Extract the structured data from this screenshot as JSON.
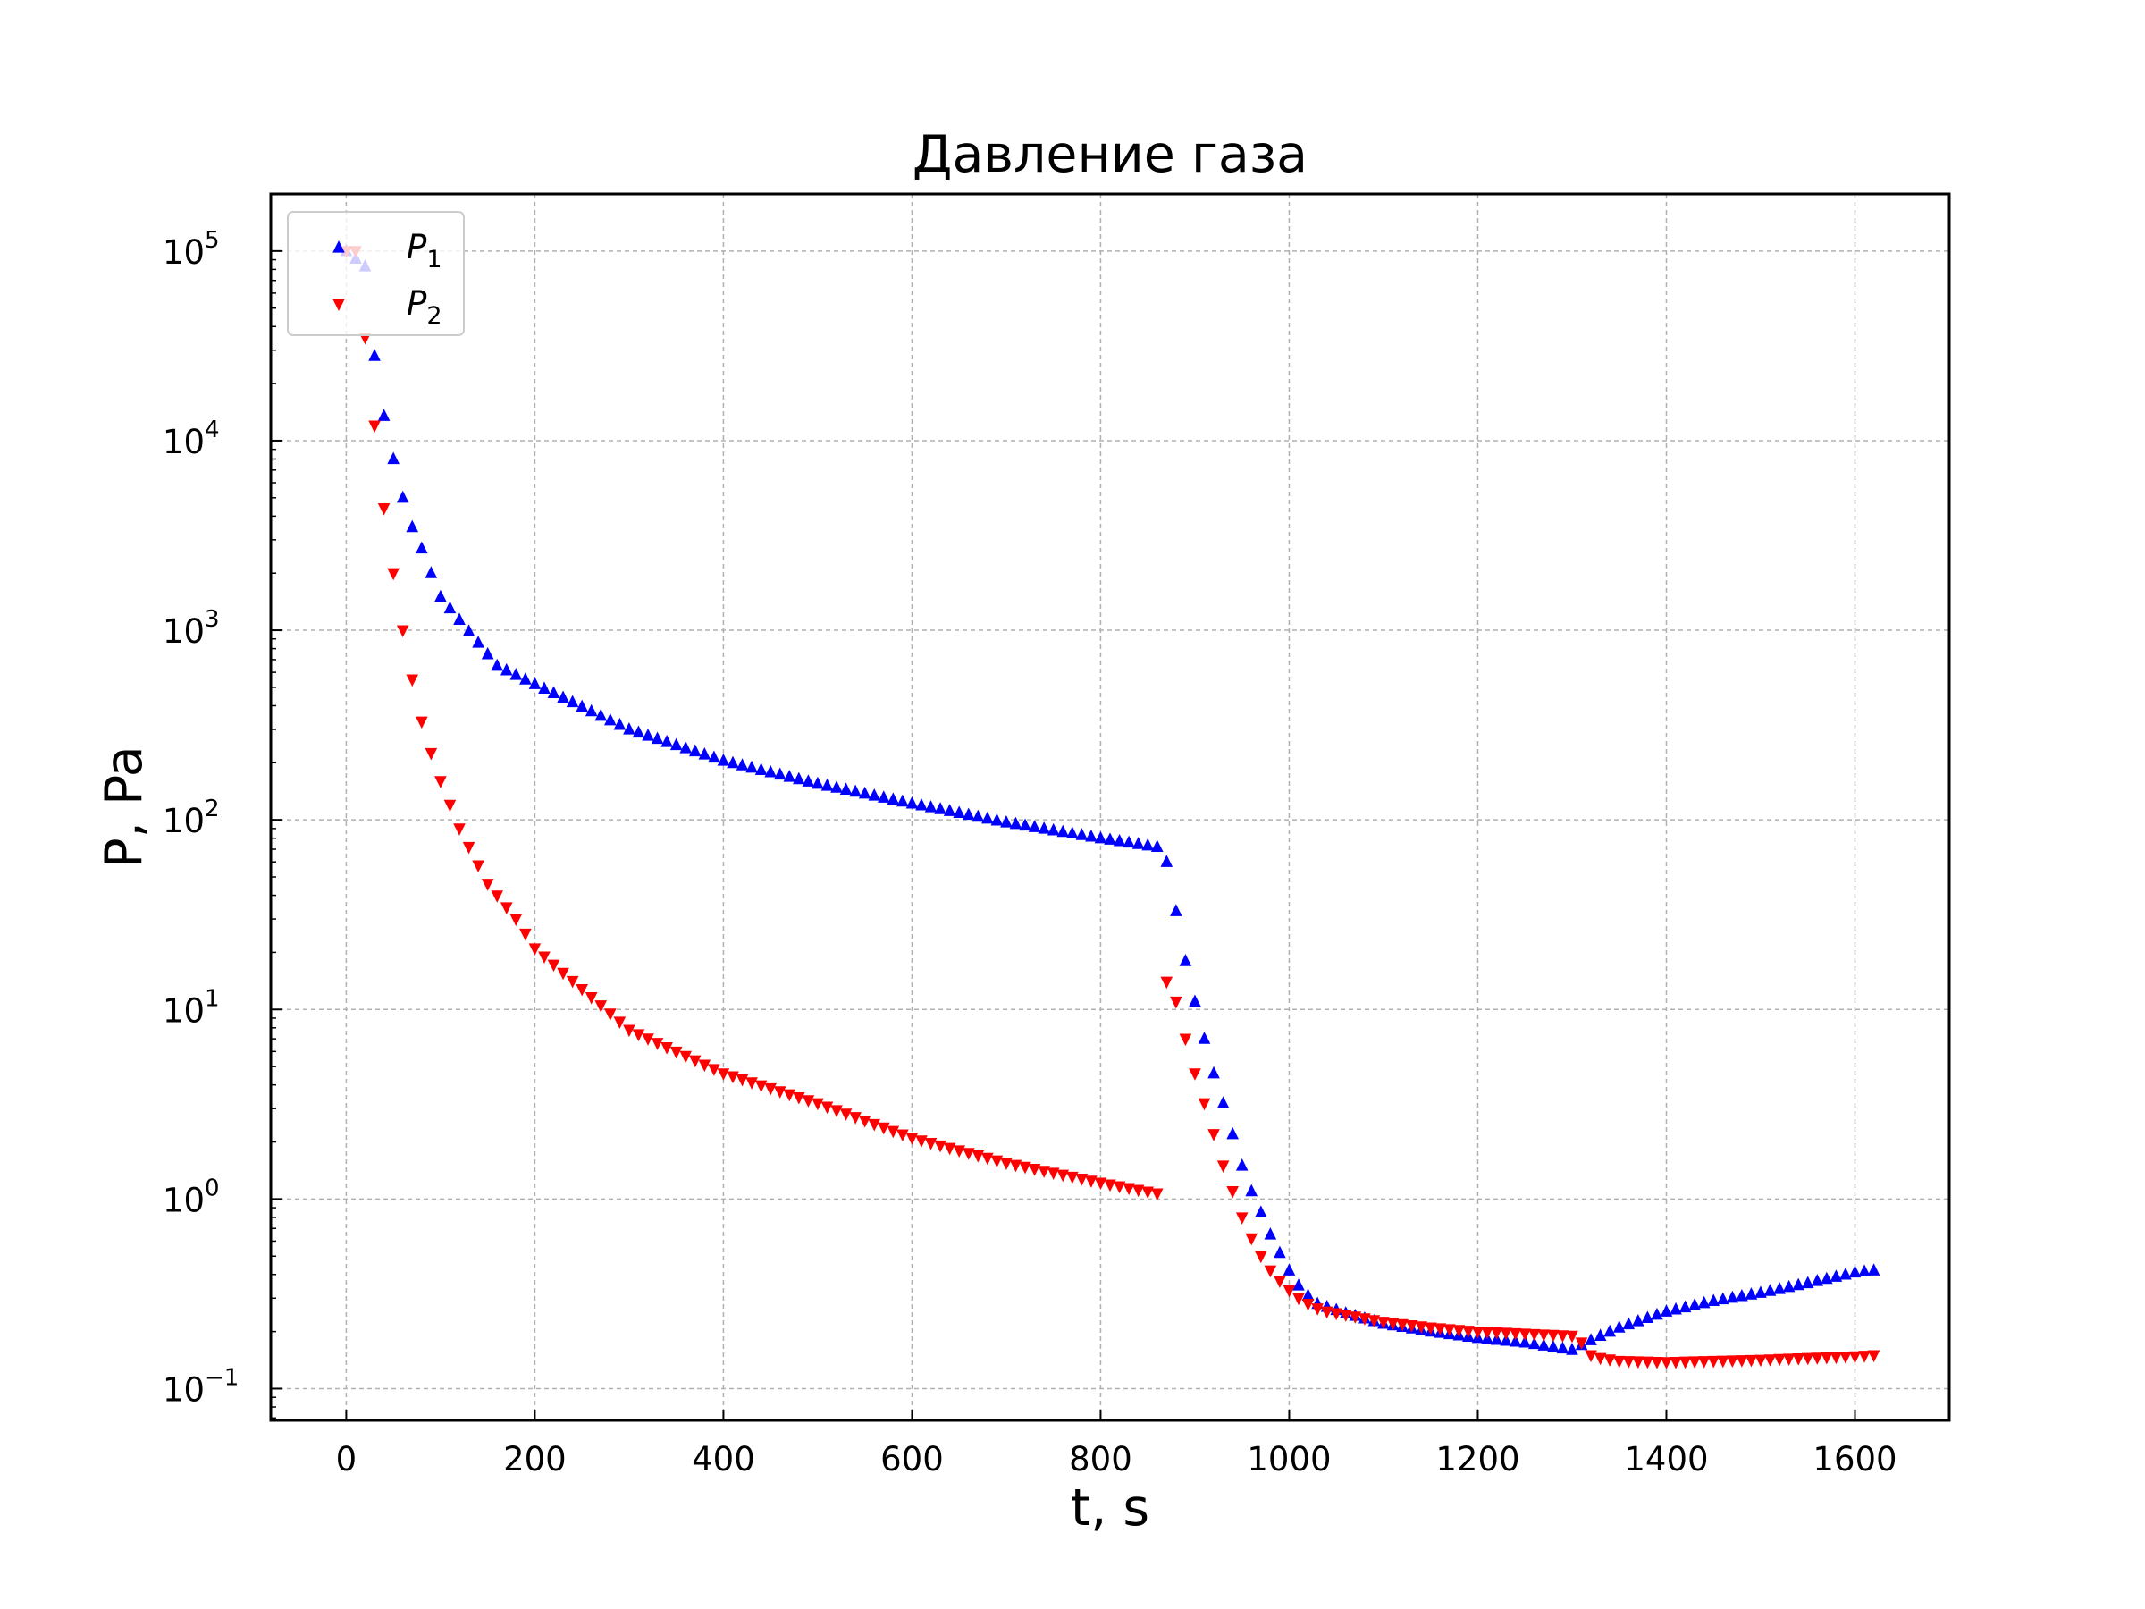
{
  "chart_data": {
    "type": "scatter",
    "title": "Давление газа",
    "xlabel": "t, s",
    "ylabel": "P, Pa",
    "xlim": [
      -80,
      1700
    ],
    "ylim": [
      0.068,
      200000
    ],
    "y_scale": "log",
    "grid": true,
    "legend_placement": "top-left",
    "x_ticks": [
      0,
      200,
      400,
      600,
      800,
      1000,
      1200,
      1400,
      1600
    ],
    "y_ticks": [
      {
        "value": 0.1,
        "base": "10",
        "exp": "−1"
      },
      {
        "value": 1,
        "base": "10",
        "exp": "0"
      },
      {
        "value": 10,
        "base": "10",
        "exp": "1"
      },
      {
        "value": 100,
        "base": "10",
        "exp": "2"
      },
      {
        "value": 1000,
        "base": "10",
        "exp": "3"
      },
      {
        "value": 10000,
        "base": "10",
        "exp": "4"
      },
      {
        "value": 100000,
        "base": "10",
        "exp": "5"
      }
    ],
    "series": [
      {
        "name": "P₁",
        "legend_symbol": "P",
        "legend_sub": "1",
        "color": "#0000ff",
        "marker": "triangle-up",
        "x": [
          0,
          20,
          30,
          40,
          50,
          60,
          70,
          80,
          90,
          100,
          160,
          200,
          300,
          400,
          500,
          600,
          700,
          800,
          860,
          870,
          880,
          890,
          900,
          910,
          920,
          930,
          940,
          950,
          960,
          970,
          980,
          990,
          1000,
          1010,
          1020,
          1030,
          1040,
          1060,
          1100,
          1150,
          1200,
          1250,
          1300,
          1310,
          1320,
          1330,
          1350,
          1400,
          1450,
          1500,
          1550,
          1600,
          1620
        ],
        "y": [
          100000,
          83000,
          28000,
          13500,
          8000,
          5000,
          3500,
          2700,
          2000,
          1500,
          650,
          520,
          300,
          205,
          155,
          122,
          97,
          80,
          72,
          60,
          33,
          18,
          11,
          7,
          4.6,
          3.2,
          2.2,
          1.5,
          1.1,
          0.85,
          0.65,
          0.52,
          0.42,
          0.35,
          0.31,
          0.28,
          0.27,
          0.25,
          0.22,
          0.2,
          0.185,
          0.175,
          0.16,
          0.17,
          0.18,
          0.19,
          0.21,
          0.255,
          0.29,
          0.32,
          0.36,
          0.41,
          0.42
        ]
      },
      {
        "name": "P₂",
        "legend_symbol": "P",
        "legend_sub": "2",
        "color": "#ff0000",
        "marker": "triangle-down",
        "x": [
          0,
          10,
          20,
          30,
          40,
          50,
          60,
          70,
          80,
          90,
          100,
          110,
          120,
          130,
          150,
          180,
          200,
          300,
          400,
          500,
          600,
          700,
          800,
          860,
          870,
          880,
          890,
          900,
          910,
          920,
          930,
          940,
          950,
          960,
          970,
          980,
          990,
          1000,
          1010,
          1020,
          1030,
          1040,
          1060,
          1100,
          1150,
          1200,
          1250,
          1300,
          1310,
          1320,
          1330,
          1350,
          1400,
          1450,
          1500,
          1550,
          1600,
          1620
        ],
        "y": [
          100000,
          100000,
          35000,
          12000,
          4400,
          2000,
          1000,
          550,
          330,
          225,
          160,
          120,
          90,
          72,
          46,
          30,
          21,
          7.8,
          4.6,
          3.2,
          2.1,
          1.55,
          1.22,
          1.07,
          14,
          11,
          7,
          4.6,
          3.2,
          2.2,
          1.5,
          1.1,
          0.8,
          0.62,
          0.5,
          0.42,
          0.37,
          0.33,
          0.3,
          0.28,
          0.265,
          0.255,
          0.245,
          0.225,
          0.21,
          0.2,
          0.195,
          0.19,
          0.175,
          0.15,
          0.145,
          0.14,
          0.138,
          0.14,
          0.142,
          0.145,
          0.148,
          0.15
        ]
      }
    ]
  }
}
